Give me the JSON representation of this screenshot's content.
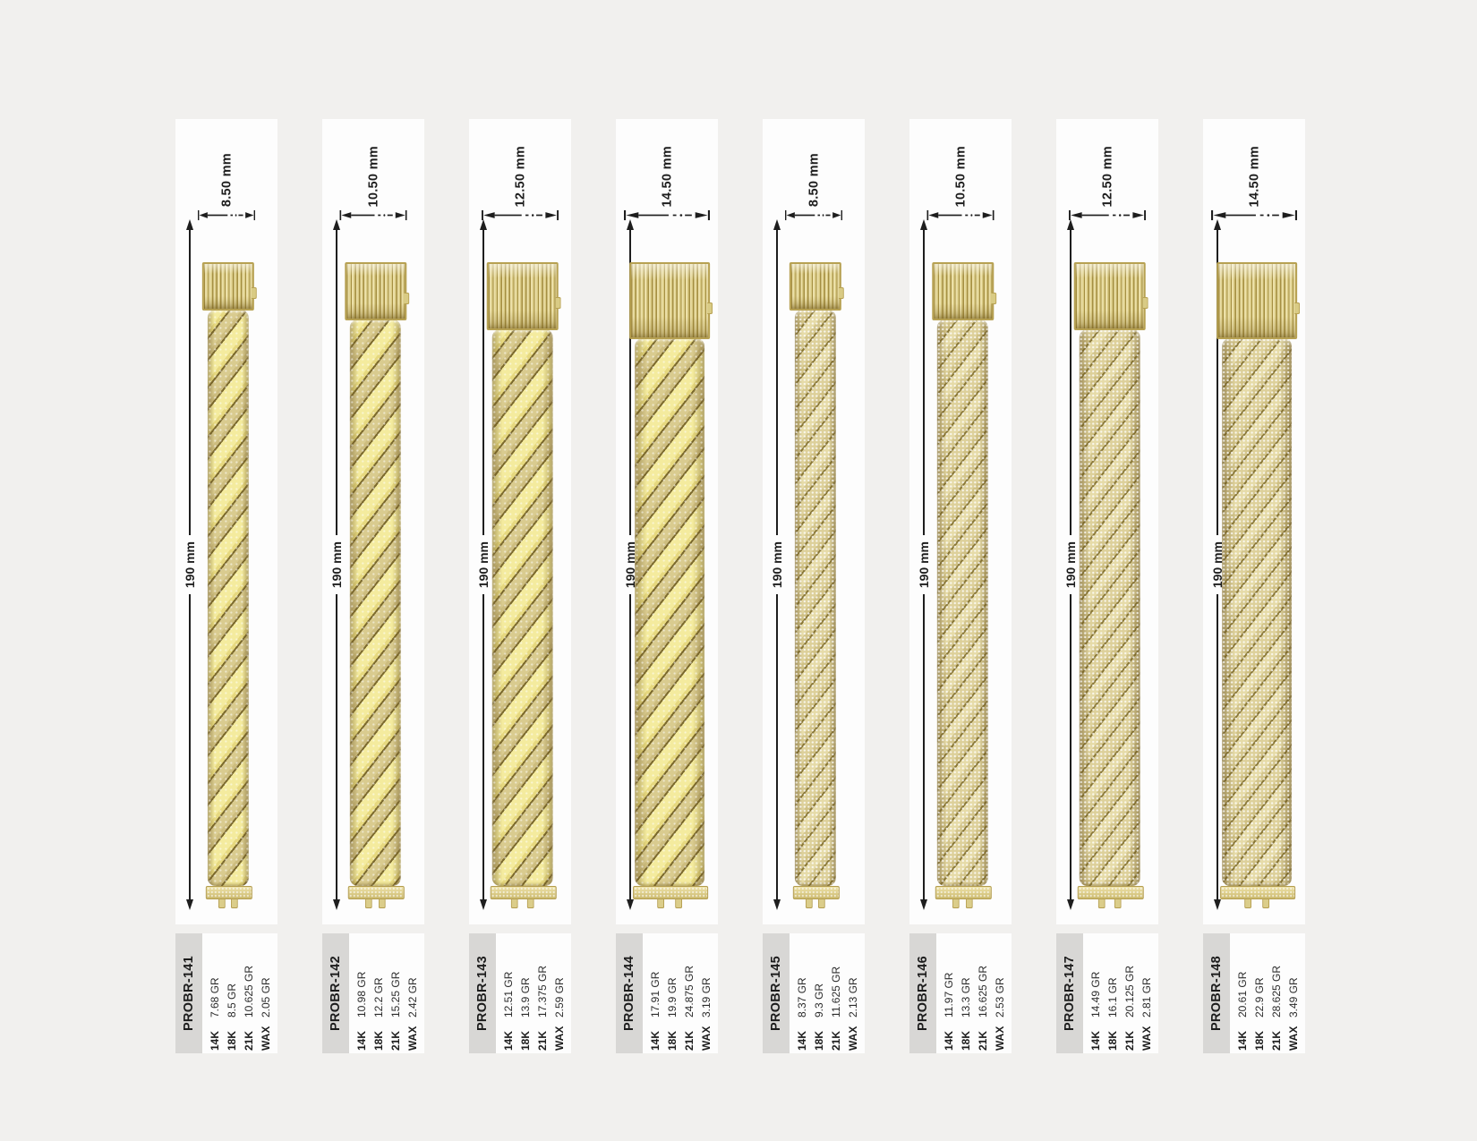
{
  "colors": {
    "background": "#f1f0ee",
    "card_background": "#fdfdfd",
    "label_strip": "#d8d7d5",
    "dimension_ink": "#1e1e1e",
    "gold_bright": "#f4eb9e",
    "gold_pave": "#d9cb8f",
    "gold_dark": "#a58f42"
  },
  "weight_column_labels": [
    "14K",
    "18K",
    "21K",
    "WAX"
  ],
  "products": [
    {
      "code": "PROBR-141",
      "width_label": "8.50 mm",
      "length_label": "190 mm",
      "chain_style": "two-tone",
      "weights": [
        {
          "label": "14K",
          "value": "7.68 GR"
        },
        {
          "label": "18K",
          "value": "8.5 GR"
        },
        {
          "label": "21K",
          "value": "10.625 GR"
        },
        {
          "label": "WAX",
          "value": "2.05 GR"
        }
      ]
    },
    {
      "code": "PROBR-142",
      "width_label": "10.50 mm",
      "length_label": "190 mm",
      "chain_style": "two-tone",
      "weights": [
        {
          "label": "14K",
          "value": "10.98 GR"
        },
        {
          "label": "18K",
          "value": "12.2 GR"
        },
        {
          "label": "21K",
          "value": "15.25 GR"
        },
        {
          "label": "WAX",
          "value": "2.42 GR"
        }
      ]
    },
    {
      "code": "PROBR-143",
      "width_label": "12.50 mm",
      "length_label": "190 mm",
      "chain_style": "two-tone",
      "weights": [
        {
          "label": "14K",
          "value": "12.51 GR"
        },
        {
          "label": "18K",
          "value": "13.9 GR"
        },
        {
          "label": "21K",
          "value": "17.375 GR"
        },
        {
          "label": "WAX",
          "value": "2.59 GR"
        }
      ]
    },
    {
      "code": "PROBR-144",
      "width_label": "14.50 mm",
      "length_label": "190 mm",
      "chain_style": "two-tone",
      "weights": [
        {
          "label": "14K",
          "value": "17.91 GR"
        },
        {
          "label": "18K",
          "value": "19.9 GR"
        },
        {
          "label": "21K",
          "value": "24.875 GR"
        },
        {
          "label": "WAX",
          "value": "3.19 GR"
        }
      ]
    },
    {
      "code": "PROBR-145",
      "width_label": "8.50 mm",
      "length_label": "190 mm",
      "chain_style": "pave",
      "weights": [
        {
          "label": "14K",
          "value": "8.37 GR"
        },
        {
          "label": "18K",
          "value": "9.3 GR"
        },
        {
          "label": "21K",
          "value": "11.625 GR"
        },
        {
          "label": "WAX",
          "value": "2.13 GR"
        }
      ]
    },
    {
      "code": "PROBR-146",
      "width_label": "10.50 mm",
      "length_label": "190 mm",
      "chain_style": "pave",
      "weights": [
        {
          "label": "14K",
          "value": "11.97 GR"
        },
        {
          "label": "18K",
          "value": "13.3 GR"
        },
        {
          "label": "21K",
          "value": "16.625 GR"
        },
        {
          "label": "WAX",
          "value": "2.53 GR"
        }
      ]
    },
    {
      "code": "PROBR-147",
      "width_label": "12.50 mm",
      "length_label": "190 mm",
      "chain_style": "pave",
      "weights": [
        {
          "label": "14K",
          "value": "14.49 GR"
        },
        {
          "label": "18K",
          "value": "16.1 GR"
        },
        {
          "label": "21K",
          "value": "20.125 GR"
        },
        {
          "label": "WAX",
          "value": "2.81 GR"
        }
      ]
    },
    {
      "code": "PROBR-148",
      "width_label": "14.50 mm",
      "length_label": "190 mm",
      "chain_style": "pave",
      "weights": [
        {
          "label": "14K",
          "value": "20.61 GR"
        },
        {
          "label": "18K",
          "value": "22.9 GR"
        },
        {
          "label": "21K",
          "value": "28.625 GR"
        },
        {
          "label": "WAX",
          "value": "3.49 GR"
        }
      ]
    }
  ]
}
